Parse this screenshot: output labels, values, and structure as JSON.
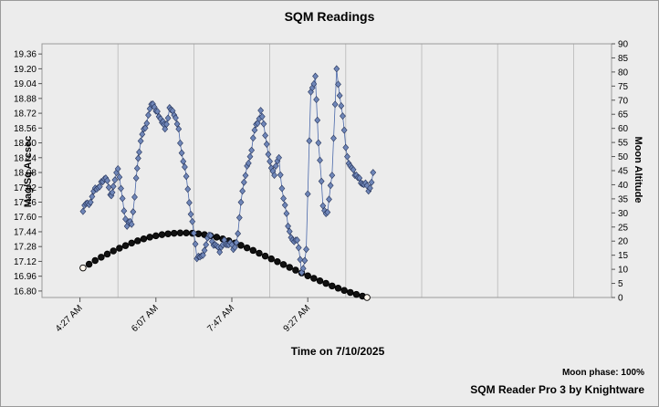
{
  "chart_data": {
    "type": "scatter",
    "title": "SQM Readings",
    "xlabel": "Time on 7/10/2025",
    "ylabel": "Mag/Sq Arcsec",
    "y2label": "Moon Altitude",
    "x_ticks": [
      "4:27 AM",
      "6:07 AM",
      "7:47 AM",
      "9:27 AM"
    ],
    "x_tick_minutes": [
      267,
      367,
      467,
      567
    ],
    "xlim_minutes": [
      217,
      967
    ],
    "y_ticks": [
      "16.80",
      "16.96",
      "17.12",
      "17.28",
      "17.44",
      "17.60",
      "17.76",
      "17.92",
      "18.08",
      "18.24",
      "18.40",
      "18.56",
      "18.72",
      "18.88",
      "19.04",
      "19.20",
      "19.36"
    ],
    "ylim": [
      16.73,
      19.47
    ],
    "y2_ticks": [
      "0",
      "5",
      "10",
      "15",
      "20",
      "25",
      "30",
      "35",
      "40",
      "45",
      "50",
      "55",
      "60",
      "65",
      "70",
      "75",
      "80",
      "85",
      "90"
    ],
    "y2lim": [
      0,
      90
    ],
    "grid": true,
    "colors": {
      "sqm_marker": "#6f86b8",
      "sqm_line": "#4a68aa",
      "moon_marker": "#111111",
      "plot_bg": "#ececec",
      "grid": "#b7b7b7"
    },
    "series": [
      {
        "axis": "left",
        "x_minutes": [
          271,
          277,
          283,
          289,
          295,
          301,
          307,
          311,
          317,
          323,
          329,
          335,
          341,
          345,
          351,
          357,
          363,
          369,
          375,
          379,
          385,
          391,
          397,
          403,
          409,
          415,
          421,
          427,
          433,
          439,
          445,
          451,
          457,
          463,
          469,
          475,
          481,
          487,
          493,
          499,
          505,
          511,
          517,
          523,
          529,
          535,
          541,
          547,
          553,
          559,
          565,
          571,
          577,
          581,
          587,
          593,
          599,
          605,
          611,
          617,
          623,
          629,
          635,
          641,
          647,
          653
        ],
        "values": [
          17.66,
          17.75,
          17.82,
          17.9,
          17.98,
          18.02,
          17.84,
          17.93,
          18.12,
          17.8,
          17.5,
          17.52,
          18.02,
          18.3,
          18.55,
          18.7,
          18.82,
          18.74,
          18.62,
          18.55,
          18.78,
          18.7,
          18.55,
          18.2,
          17.9,
          17.55,
          17.15,
          17.18,
          17.3,
          17.4,
          17.3,
          17.22,
          17.35,
          17.3,
          17.25,
          17.42,
          17.88,
          18.15,
          18.32,
          18.6,
          18.75,
          18.48,
          18.2,
          18.05,
          18.24,
          17.8,
          17.5,
          17.35,
          17.35,
          17.0,
          17.25,
          18.95,
          19.12,
          18.4,
          17.72,
          17.65,
          18.05,
          19.2,
          18.8,
          18.35,
          18.15,
          18.05,
          18.02,
          17.95,
          17.88,
          18.08
        ]
      },
      {
        "axis": "right",
        "x_minutes": [
          271,
          279,
          287,
          295,
          303,
          311,
          319,
          327,
          335,
          343,
          351,
          359,
          367,
          375,
          383,
          391,
          399,
          407,
          415,
          423,
          431,
          439,
          447,
          455,
          463,
          471,
          479,
          487,
          495,
          503,
          511,
          519,
          527,
          535,
          543,
          551,
          559,
          567,
          575,
          583,
          591,
          599,
          607,
          615,
          623,
          631,
          639,
          645
        ],
        "values": [
          10.5,
          11.8,
          13.1,
          14.3,
          15.4,
          16.5,
          17.5,
          18.4,
          19.3,
          20.1,
          20.8,
          21.4,
          21.9,
          22.3,
          22.6,
          22.8,
          22.9,
          22.9,
          22.8,
          22.6,
          22.3,
          21.9,
          21.4,
          20.8,
          20.1,
          19.3,
          18.5,
          17.6,
          16.7,
          15.7,
          14.7,
          13.7,
          12.7,
          11.7,
          10.7,
          9.7,
          8.7,
          7.7,
          6.8,
          5.9,
          5.0,
          4.1,
          3.3,
          2.5,
          1.8,
          1.1,
          0.5,
          0.0
        ]
      }
    ]
  },
  "moon_phase": "Moon phase: 100%",
  "footer": "SQM Reader Pro 3 by Knightware"
}
